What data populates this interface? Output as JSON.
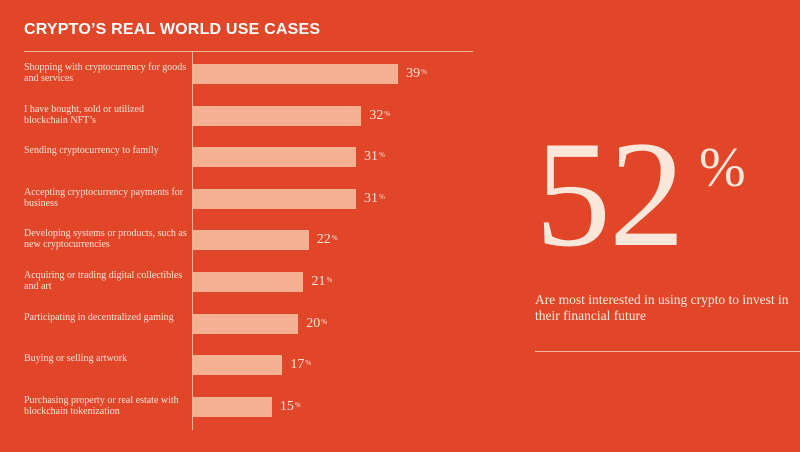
{
  "chart_data": {
    "type": "bar",
    "orientation": "horizontal",
    "title": "CRYPTO’S REAL WORLD USE CASES",
    "xlabel": "",
    "ylabel": "",
    "unit": "%",
    "xlim": [
      0,
      40
    ],
    "categories": [
      "Shopping with cryptocurrency for goods and services",
      "I have bought, sold or utilized blockchain NFT’s",
      "Sending cryptocurrency to family",
      "Accepting cryptocurrency payments for business",
      "Developing systems or products, such as new cryptocurrencies",
      "Acquiring or trading digital collectibles and art",
      "Participating in decentralized gaming",
      "Buying or selling artwork",
      "Purchasing property or real estate with blockchain tokenization"
    ],
    "values": [
      39,
      32,
      31,
      31,
      22,
      21,
      20,
      17,
      15
    ],
    "grid": false,
    "legend": "none"
  },
  "callout": {
    "value": "52",
    "unit": "%",
    "caption": "Are most interested in using crypto to invest in their financial future"
  },
  "colors": {
    "background": "#e04627",
    "bar": "#f4b191",
    "text": "#fbe3da"
  }
}
